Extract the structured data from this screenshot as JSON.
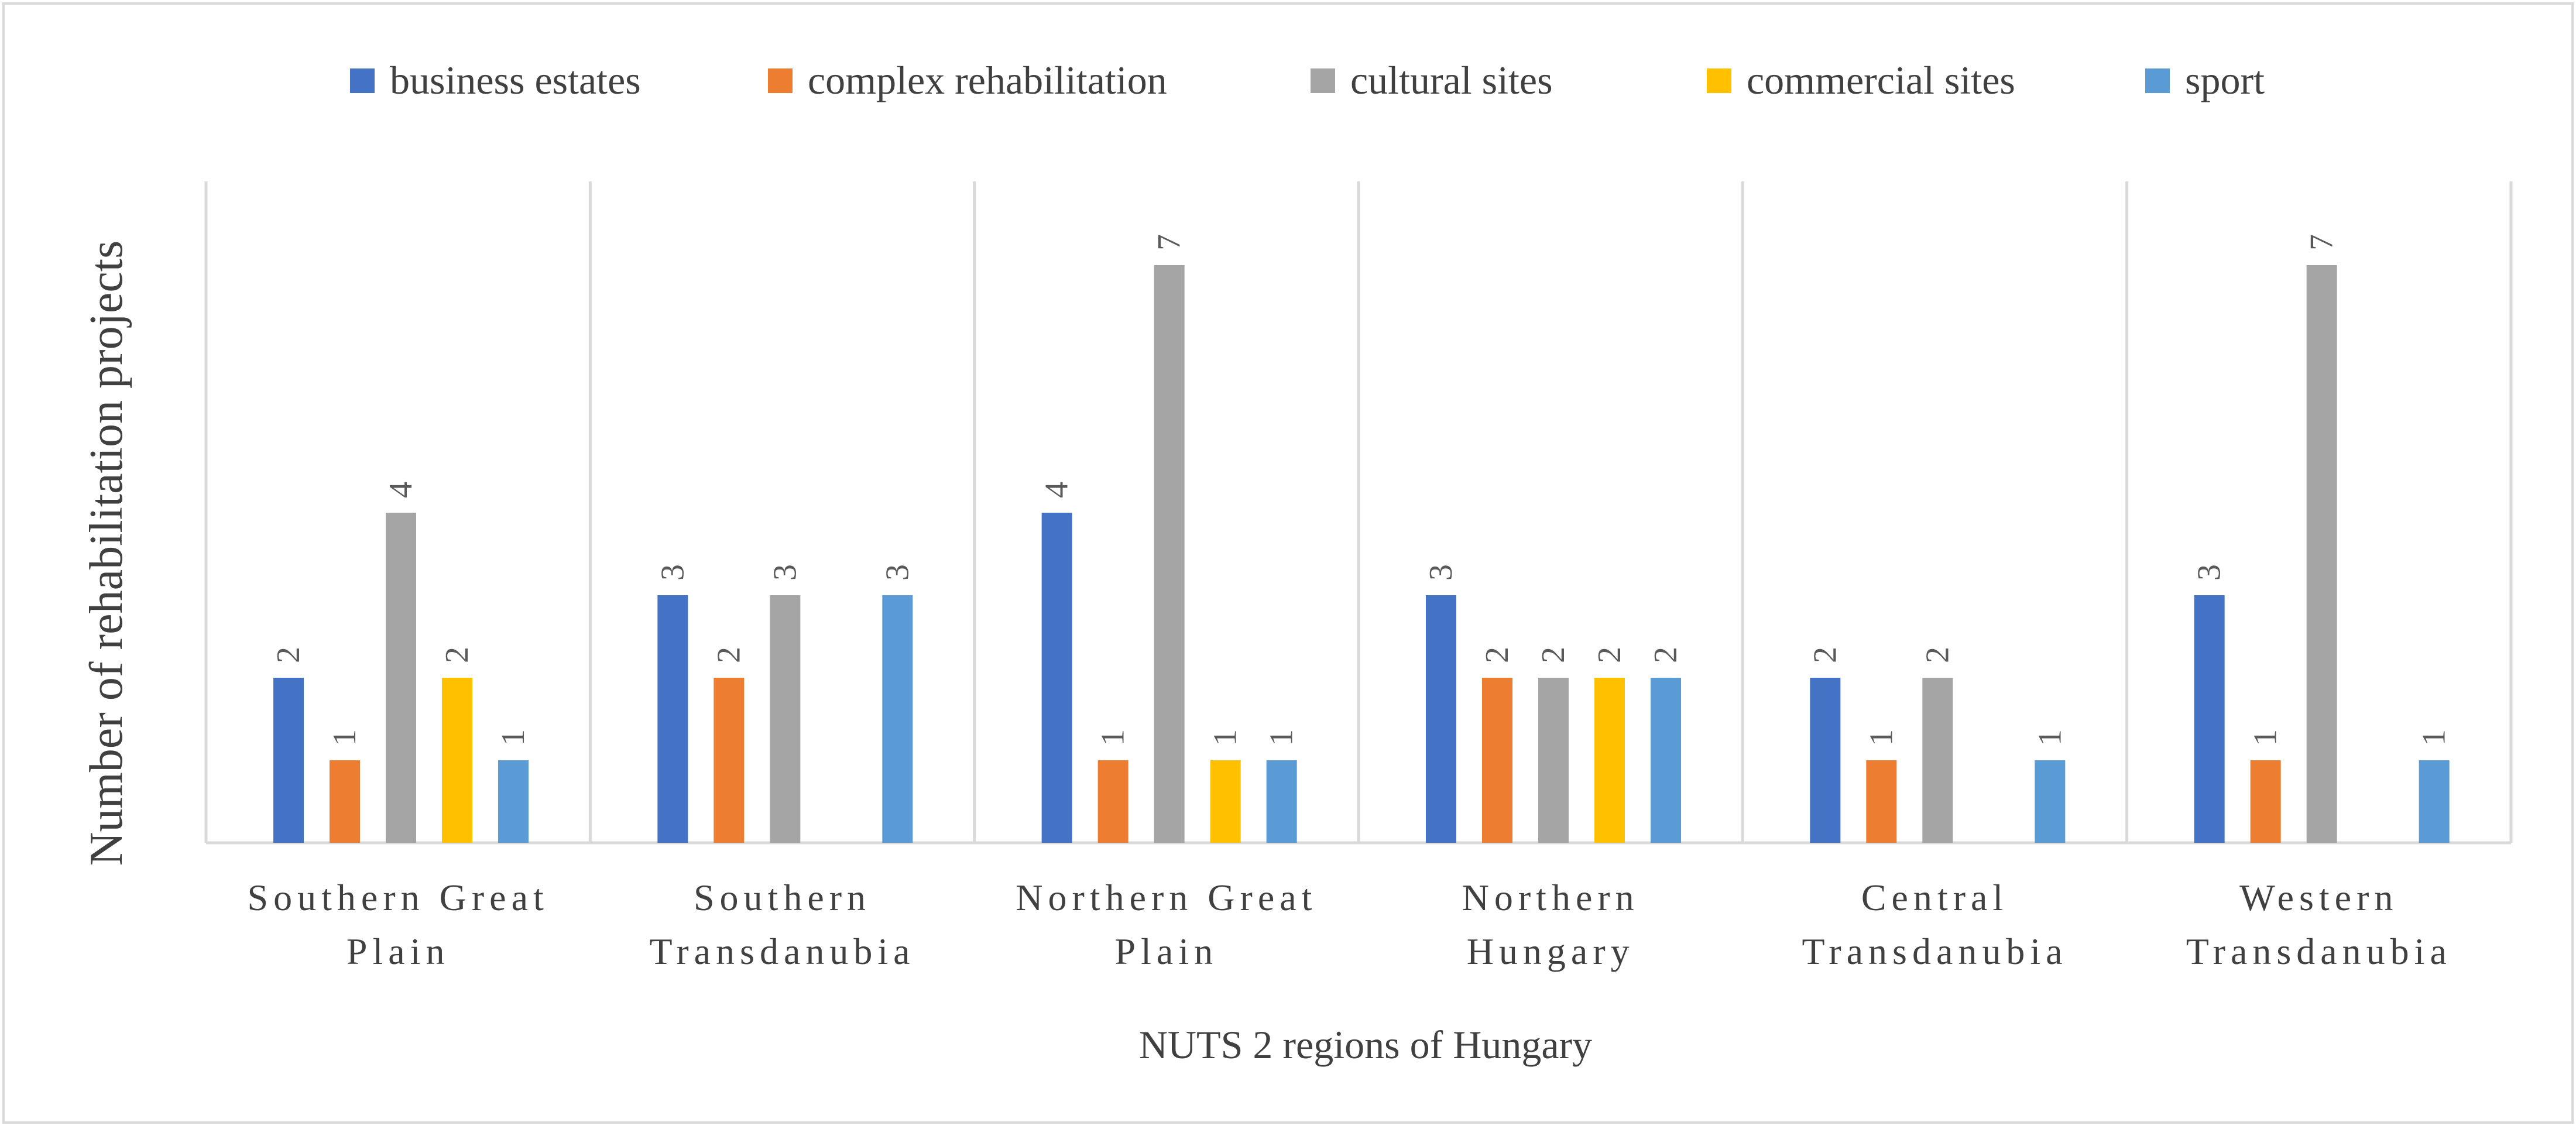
{
  "chart_data": {
    "type": "bar",
    "title": "",
    "xlabel": "NUTS 2 regions of Hungary",
    "ylabel": "Number of rehabilitation projects",
    "ylim": [
      0,
      8
    ],
    "grid": false,
    "legend_position": "top-center",
    "categories": [
      [
        "Southern Great",
        "Plain"
      ],
      [
        "Southern",
        "Transdanubia"
      ],
      [
        "Northern Great",
        "Plain"
      ],
      [
        "Northern",
        "Hungary"
      ],
      [
        "Central",
        "Transdanubia"
      ],
      [
        "Western",
        "Transdanubia"
      ]
    ],
    "series": [
      {
        "name": "business estates",
        "color": "#4472C4",
        "values": [
          2,
          3,
          4,
          3,
          2,
          3
        ]
      },
      {
        "name": "complex rehabilitation",
        "color": "#ED7D31",
        "values": [
          1,
          2,
          1,
          2,
          1,
          1
        ]
      },
      {
        "name": "cultural sites",
        "color": "#A5A5A5",
        "values": [
          4,
          3,
          7,
          2,
          2,
          7
        ]
      },
      {
        "name": "commercial sites",
        "color": "#FFC000",
        "values": [
          2,
          null,
          1,
          2,
          null,
          null
        ]
      },
      {
        "name": "sport",
        "color": "#5B9BD5",
        "values": [
          1,
          3,
          1,
          2,
          1,
          1
        ]
      }
    ],
    "data_label_color": "#595959"
  }
}
